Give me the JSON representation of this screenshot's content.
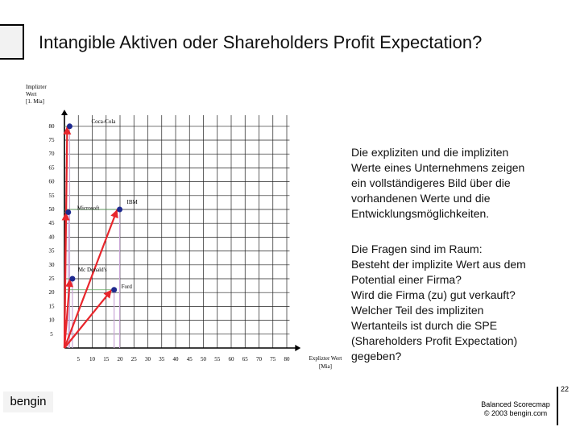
{
  "slide": {
    "title": "Intangible Aktiven oder Shareholders Profit Expectation?",
    "y_axis_label": [
      "Implizter",
      "Wert",
      "[1. Mia]"
    ],
    "x_axis_label": [
      "Explizter Wert",
      "[Mia]"
    ],
    "paragraph1": [
      "Die expliziten und die impliziten",
      "Werte eines Unternehmens zeigen",
      "ein vollständigeres Bild über die",
      "vorhandenen Werte und die",
      "Entwicklungsmöglichkeiten."
    ],
    "paragraph2": [
      "Die Fragen sind im Raum:",
      "Besteht der implizite Wert aus dem",
      "Potential einer Firma?",
      "Wird die Firma (zu) gut verkauft?",
      "Welcher Teil des impliziten",
      "Wertanteils ist durch die SPE",
      "(Shareholders Profit Expectation)",
      "gegeben?"
    ],
    "brand": "bengin",
    "footer": [
      "Balanced Scorecmap",
      "© 2003 bengin.com"
    ],
    "page_number": "22"
  },
  "chart_data": {
    "type": "scatter",
    "xlabel": "Explizter Wert [Mia]",
    "ylabel": "Implizter Wert [1. Mia]",
    "xlim": [
      0,
      80
    ],
    "ylim": [
      0,
      80
    ],
    "x_ticks": [
      "5",
      "10",
      "15",
      "20",
      "25",
      "30",
      "35",
      "40",
      "45",
      "50",
      "55",
      "60",
      "65",
      "70",
      "75",
      "80"
    ],
    "y_ticks": [
      "5",
      "10",
      "15",
      "20",
      "25",
      "30",
      "35",
      "40",
      "45",
      "50",
      "55",
      "60",
      "65",
      "70",
      "75",
      "80"
    ],
    "grid": true,
    "points": [
      {
        "name": "Coca-Cola",
        "x": 1,
        "y": 80
      },
      {
        "name": "Microsoft",
        "x": 0.5,
        "y": 49
      },
      {
        "name": "IBM",
        "x": 19,
        "y": 50
      },
      {
        "name": "Mc Donald's",
        "x": 2,
        "y": 25
      },
      {
        "name": "Ford",
        "x": 17,
        "y": 21
      }
    ],
    "colors": {
      "arrow": "#e8262c",
      "point": "#1f2a8f",
      "guide": "#c9a6d6",
      "grid": "#222222"
    }
  }
}
